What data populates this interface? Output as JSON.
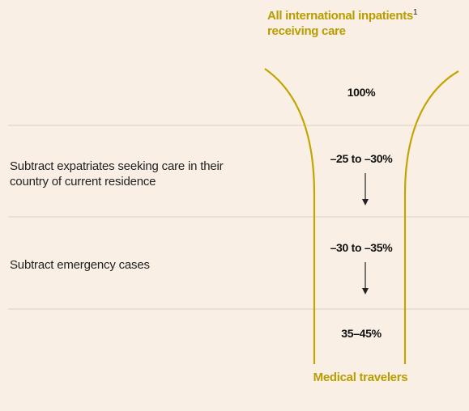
{
  "header": {
    "title_line1": "All international inpatients",
    "title_superscript": "1",
    "title_line2": "receiving care"
  },
  "stages": [
    {
      "value": "100%"
    },
    {
      "label": "Subtract expatriates seeking care in their country of current residence",
      "value": "–25 to –30%"
    },
    {
      "label": "Subtract emergency cases",
      "value": "–30 to –35%"
    },
    {
      "value": "35–45%"
    }
  ],
  "footer": {
    "title": "Medical travelers"
  }
}
